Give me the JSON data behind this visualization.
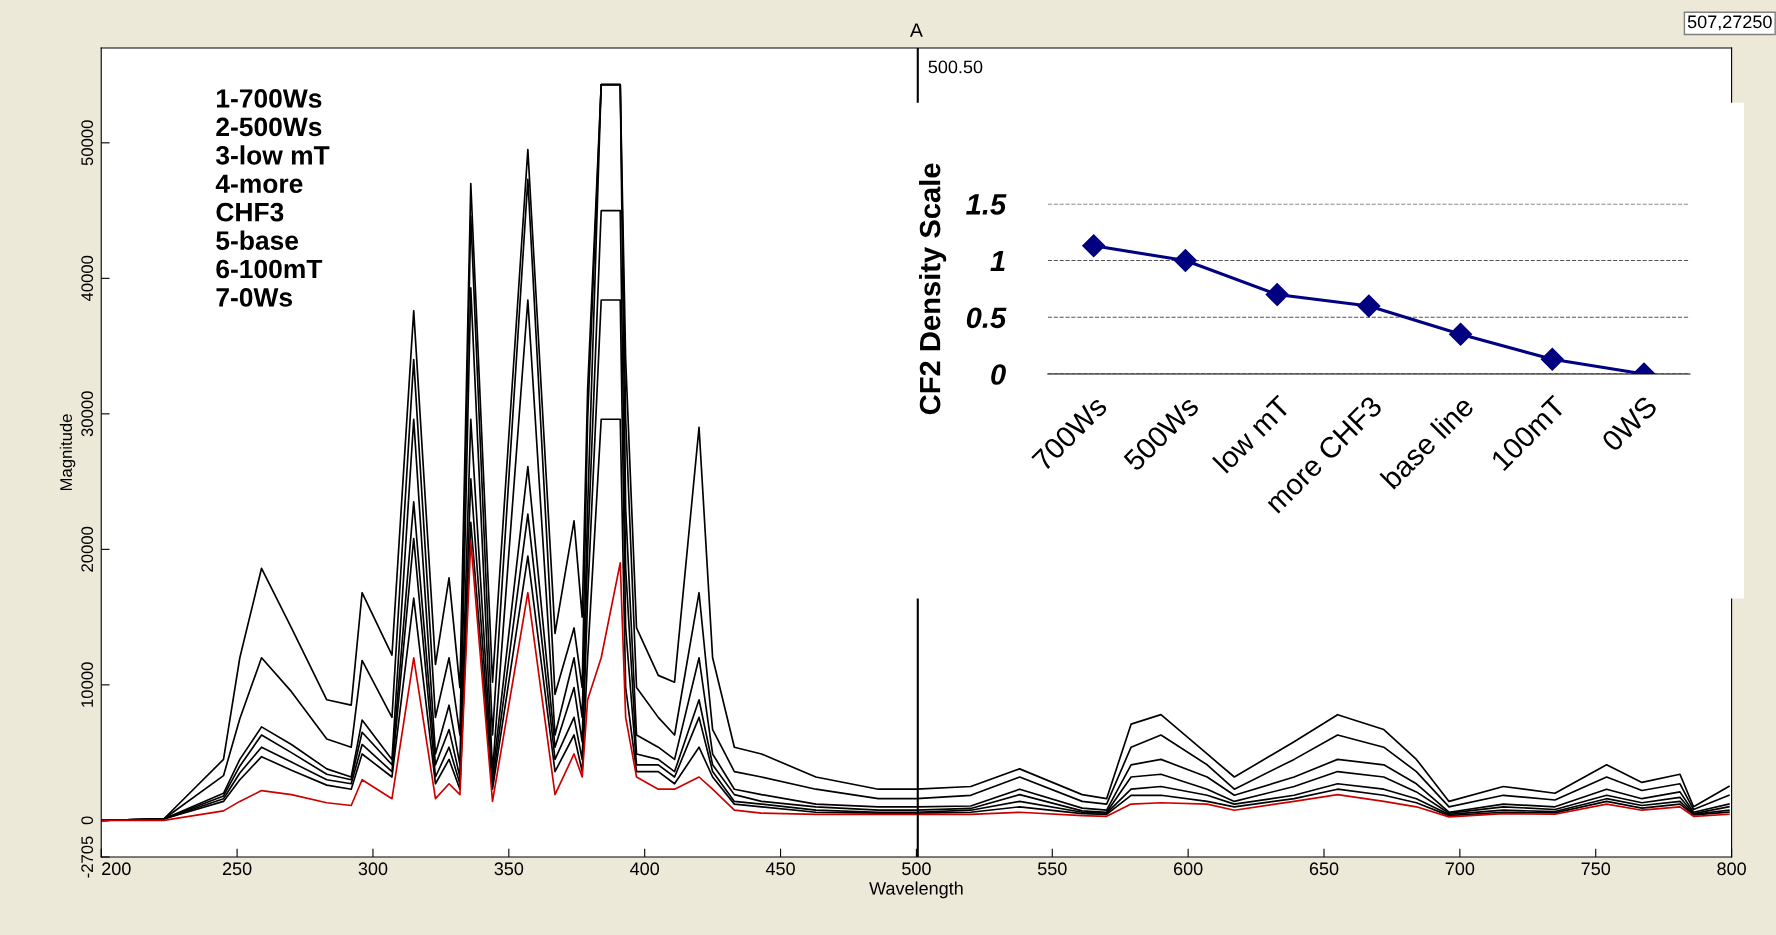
{
  "chart_data": [
    {
      "type": "line",
      "title": "A",
      "xlabel": "Wavelength",
      "ylabel": "Magnitude",
      "x": [
        200,
        223,
        245,
        251,
        259,
        270,
        283,
        292,
        296,
        307,
        315,
        323,
        328,
        332,
        336,
        344,
        357,
        367,
        374,
        377,
        379,
        384,
        391,
        393,
        397,
        405,
        411,
        420,
        425,
        433,
        443,
        463,
        486,
        500,
        520,
        538,
        561,
        570,
        579,
        590,
        607,
        617,
        639,
        655,
        672,
        684,
        696,
        716,
        735,
        754,
        767,
        781,
        786,
        799
      ],
      "series": [
        {
          "color": "#000000",
          "values": [
            0,
            100,
            4500,
            12000,
            18600,
            14200,
            8900,
            8500,
            16800,
            12200,
            37600,
            11500,
            17900,
            9800,
            47000,
            10200,
            49500,
            13800,
            22100,
            15000,
            31800,
            54300,
            54300,
            34000,
            14200,
            10700,
            10200,
            29000,
            12000,
            5400,
            4900,
            3200,
            2300,
            2300,
            2500,
            3800,
            1900,
            1600,
            7100,
            7800,
            4900,
            3200,
            5800,
            7800,
            6700,
            4500,
            1400,
            2500,
            2000,
            4100,
            2800,
            3400,
            1000,
            2500
          ]
        },
        {
          "color": "#000000",
          "values": [
            0,
            100,
            3300,
            7500,
            12000,
            9500,
            6000,
            5400,
            11800,
            7600,
            34000,
            7600,
            12000,
            6300,
            44600,
            6300,
            47300,
            9300,
            14200,
            9800,
            29600,
            54300,
            54300,
            29600,
            9800,
            7600,
            6300,
            16800,
            6700,
            3600,
            3200,
            2300,
            1600,
            1600,
            1850,
            3200,
            1400,
            1200,
            5400,
            6300,
            4100,
            2300,
            4500,
            6300,
            5400,
            3600,
            1000,
            1850,
            1500,
            3200,
            2200,
            2700,
            800,
            1850
          ]
        },
        {
          "color": "#000000",
          "values": [
            0,
            100,
            2000,
            4500,
            6900,
            5600,
            3800,
            3200,
            7400,
            4500,
            29600,
            4900,
            8500,
            4100,
            39300,
            3600,
            38400,
            6300,
            12000,
            7600,
            23000,
            54300,
            54300,
            23000,
            6300,
            5400,
            4500,
            12000,
            4900,
            2300,
            1900,
            1200,
            1000,
            1000,
            1060,
            2300,
            900,
            750,
            4100,
            4500,
            3200,
            1850,
            3200,
            4500,
            4100,
            2700,
            600,
            1200,
            1000,
            2300,
            1600,
            2100,
            600,
            1200
          ]
        },
        {
          "color": "#000000",
          "values": [
            0,
            100,
            1800,
            4000,
            6300,
            5000,
            3400,
            3000,
            6500,
            4100,
            23500,
            4100,
            6700,
            3200,
            29600,
            3200,
            26100,
            5400,
            9800,
            5800,
            19900,
            45000,
            45000,
            18600,
            4900,
            4500,
            3600,
            8900,
            4100,
            1900,
            1400,
            1000,
            750,
            750,
            880,
            1900,
            700,
            600,
            3200,
            3400,
            2300,
            1400,
            2500,
            3600,
            3200,
            2100,
            530,
            1000,
            800,
            1850,
            1300,
            1700,
            500,
            1000
          ]
        },
        {
          "color": "#000000",
          "values": [
            0,
            100,
            1600,
            3500,
            5400,
            4300,
            3000,
            2700,
            5600,
            3600,
            20800,
            3200,
            5400,
            2700,
            25200,
            2700,
            22600,
            4500,
            7600,
            4500,
            16400,
            38400,
            38400,
            14200,
            4100,
            4100,
            3200,
            7600,
            3600,
            1400,
            1200,
            750,
            600,
            600,
            750,
            1400,
            600,
            530,
            2300,
            2500,
            1850,
            1200,
            1850,
            2700,
            2300,
            1600,
            440,
            750,
            650,
            1600,
            1100,
            1400,
            450,
            750
          ]
        },
        {
          "color": "#000000",
          "values": [
            0,
            100,
            1400,
            3000,
            4700,
            3700,
            2600,
            2300,
            4900,
            3200,
            16400,
            2700,
            4500,
            2300,
            22000,
            2300,
            19500,
            3600,
            6300,
            3600,
            12000,
            29600,
            29600,
            9800,
            3600,
            3600,
            2700,
            5400,
            3200,
            1200,
            1000,
            600,
            530,
            530,
            600,
            1000,
            500,
            440,
            1850,
            1850,
            1400,
            1000,
            1600,
            2300,
            1850,
            1300,
            350,
            600,
            550,
            1400,
            900,
            1200,
            400,
            600
          ]
        },
        {
          "color": "#cc0000",
          "values": [
            0,
            0,
            700,
            1400,
            2200,
            1900,
            1300,
            1100,
            3000,
            1600,
            12000,
            1600,
            2700,
            1900,
            20600,
            1400,
            16800,
            1900,
            4900,
            3200,
            8900,
            12000,
            19000,
            7600,
            3200,
            2300,
            2300,
            3200,
            2300,
            750,
            530,
            440,
            440,
            440,
            440,
            600,
            350,
            300,
            1200,
            1300,
            1200,
            750,
            1400,
            1900,
            1400,
            1000,
            260,
            500,
            450,
            1200,
            750,
            1000,
            300,
            450
          ]
        }
      ],
      "xlim": [
        200,
        800
      ],
      "ylim": [
        -2705,
        57000
      ],
      "xticks": [
        200,
        250,
        300,
        350,
        400,
        450,
        500,
        550,
        600,
        650,
        700,
        750,
        800
      ],
      "yticks": [
        -2705,
        0,
        10000,
        20000,
        30000,
        40000,
        50000
      ],
      "ref_lines": [
        {
          "axis": "x",
          "value": 500.5,
          "label": "500.50",
          "color": "#000000"
        }
      ],
      "annotations": [
        "1-700Ws\n2-500Ws\n3-low mT\n4-more\nCHF3\n5-base\n6-100mT\n7-0Ws",
        "507,27250"
      ],
      "grid": false,
      "legend": false
    },
    {
      "type": "line",
      "ylabel": "CF2 Density Scale",
      "categories": [
        "700Ws",
        "500Ws",
        "low mT",
        "more CHF3",
        "base line",
        "100mT",
        "0WS"
      ],
      "series": [
        {
          "color": "#000080",
          "values": [
            1.13,
            1.0,
            0.7,
            0.6,
            0.35,
            0.13,
            0
          ]
        }
      ],
      "ylim": [
        0,
        1.5
      ],
      "yticks": [
        0,
        0.5,
        1,
        1.5
      ],
      "grid": "y",
      "marker": "diamond"
    }
  ]
}
